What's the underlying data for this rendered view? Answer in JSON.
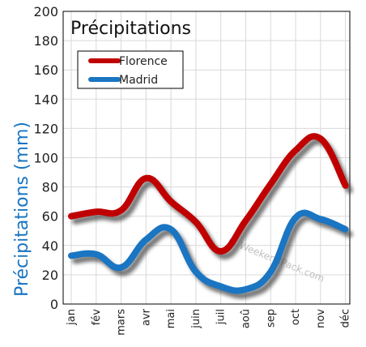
{
  "chart_data": {
    "type": "line",
    "title": "Précipitations",
    "ylabel": "Précipitations (mm)",
    "xlabel": "",
    "categories": [
      "jan",
      "fév",
      "mars",
      "avr",
      "mai",
      "juin",
      "juil",
      "aoû",
      "sep",
      "oct",
      "nov",
      "déc"
    ],
    "ylim": [
      0,
      200
    ],
    "yticks": [
      "0",
      "20",
      "40",
      "60",
      "80",
      "100",
      "120",
      "140",
      "160",
      "180",
      "200"
    ],
    "grid": true,
    "legend_position": "top-left",
    "series": [
      {
        "name": "Florence",
        "color": "#c00000",
        "values": [
          60,
          63,
          64,
          86,
          70,
          56,
          36,
          57,
          82,
          105,
          113,
          81
        ]
      },
      {
        "name": "Madrid",
        "color": "#1a75c2",
        "values": [
          33,
          34,
          25,
          44,
          51,
          22,
          12,
          10,
          22,
          59,
          58,
          51
        ]
      }
    ],
    "watermark": "© WeekendPack.com"
  }
}
